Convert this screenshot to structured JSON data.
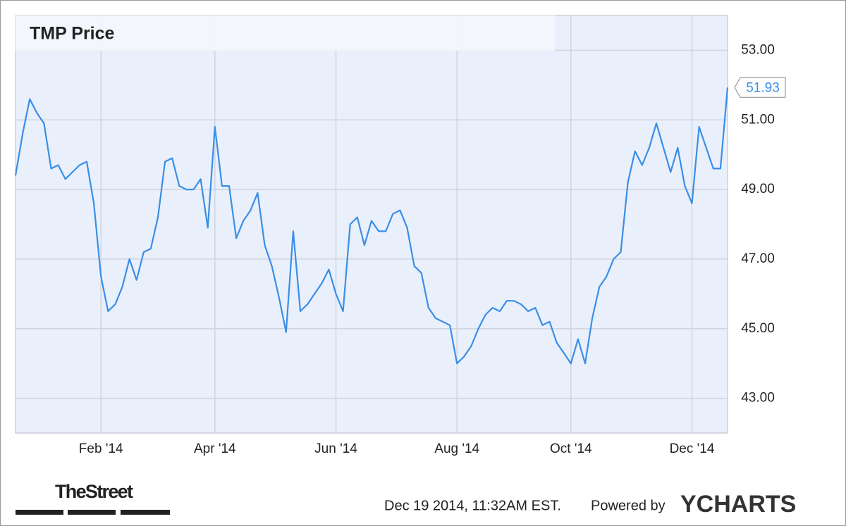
{
  "chart_data": {
    "type": "line",
    "title": "TMP Price",
    "categories": [
      null,
      null,
      null,
      null,
      null,
      null,
      null,
      null,
      null,
      null,
      null,
      null,
      "Feb '14",
      null,
      null,
      null,
      null,
      null,
      null,
      null,
      null,
      null,
      null,
      null,
      null,
      null,
      null,
      null,
      "Apr '14",
      null,
      null,
      null,
      null,
      null,
      null,
      null,
      null,
      null,
      null,
      null,
      null,
      null,
      null,
      null,
      null,
      "Jun '14",
      null,
      null,
      null,
      null,
      null,
      null,
      null,
      null,
      null,
      null,
      null,
      null,
      null,
      null,
      null,
      null,
      "Aug '14",
      null,
      null,
      null,
      null,
      null,
      null,
      null,
      null,
      null,
      null,
      null,
      null,
      null,
      null,
      null,
      "Oct '14",
      null,
      null,
      null,
      null,
      null,
      null,
      null,
      null,
      null,
      null,
      null,
      null,
      null,
      null,
      null,
      null,
      "Dec '14",
      null,
      null,
      null,
      null,
      null
    ],
    "series": [
      {
        "name": "TMP Price",
        "color": "#3a8ee6",
        "values": [
          49.4,
          50.6,
          51.6,
          51.2,
          50.9,
          49.6,
          49.7,
          49.3,
          49.5,
          49.7,
          49.8,
          48.6,
          46.5,
          45.5,
          45.7,
          46.2,
          47.0,
          46.4,
          47.2,
          47.3,
          48.2,
          49.8,
          49.9,
          49.1,
          49.0,
          49.0,
          49.3,
          47.9,
          50.8,
          49.1,
          49.1,
          47.6,
          48.1,
          48.4,
          48.9,
          47.4,
          46.8,
          45.9,
          44.9,
          47.8,
          45.5,
          45.7,
          46.0,
          46.3,
          46.7,
          46.0,
          45.5,
          48.0,
          48.2,
          47.4,
          48.1,
          47.8,
          47.8,
          48.3,
          48.4,
          47.9,
          46.8,
          46.6,
          45.6,
          45.3,
          45.2,
          45.1,
          44.0,
          44.2,
          44.5,
          45.0,
          45.4,
          45.6,
          45.5,
          45.8,
          45.8,
          45.7,
          45.5,
          45.6,
          45.1,
          45.2,
          44.6,
          44.3,
          44.0,
          44.7,
          44.0,
          45.3,
          46.2,
          46.5,
          47.0,
          47.2,
          49.2,
          50.1,
          49.7,
          50.2,
          50.9,
          50.2,
          49.5,
          50.2,
          49.1,
          48.6,
          50.8,
          50.2,
          49.6,
          49.6,
          51.93
        ]
      }
    ],
    "ylim": [
      42,
      54
    ],
    "yticks": [
      {
        "value": 43,
        "label": "43.00"
      },
      {
        "value": 45,
        "label": "45.00"
      },
      {
        "value": 47,
        "label": "47.00"
      },
      {
        "value": 49,
        "label": "49.00"
      },
      {
        "value": 51,
        "label": "51.00"
      },
      {
        "value": 53,
        "label": "53.00"
      }
    ],
    "grid": true,
    "timestamp": "Dec 19 2014, 11:32AM EST.",
    "powered_by": "Powered by",
    "brand": "YCHARTS",
    "logo": "TheStreet"
  }
}
